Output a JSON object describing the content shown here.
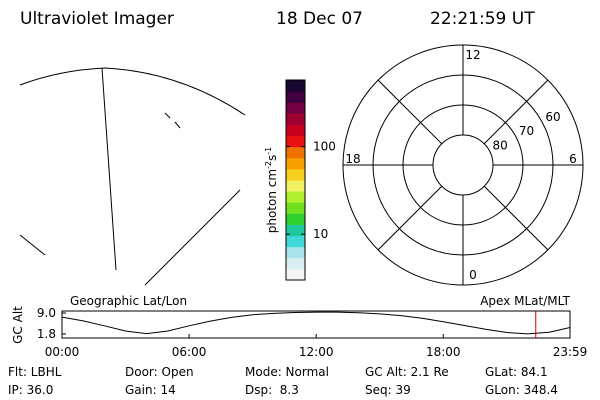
{
  "header": {
    "title": "Ultraviolet Imager",
    "date": "18 Dec 07",
    "time": "22:21:59 UT"
  },
  "colorbar": {
    "label": "photon cm",
    "label_exp1": "-2",
    "label_unit2": "s",
    "label_exp2": "-1",
    "log": true,
    "lim": [
      3,
      575
    ],
    "ticks": [
      10,
      100
    ],
    "colors": [
      "#f4f4f4",
      "#d8eef0",
      "#a8e4ea",
      "#40d8d8",
      "#20c8a0",
      "#30d030",
      "#70e020",
      "#b0f030",
      "#f0f060",
      "#f8d020",
      "#f8a000",
      "#f07000",
      "#e81010",
      "#c80020",
      "#a00030",
      "#700040",
      "#400040",
      "#180830"
    ]
  },
  "polar": {
    "lat_lim": [
      90,
      50
    ],
    "rings": [
      80,
      70,
      60
    ],
    "mlt_ticks": [
      12,
      18,
      6,
      0
    ],
    "spoke_step": 3
  },
  "timeline": {
    "left_title": "Geographic Lat/Lon",
    "right_title": "Apex MLat/MLT",
    "ylabel": "GC Alt",
    "ylim": [
      0.4,
      9.7
    ],
    "yticks": [
      {
        "value": 9,
        "label": "9.0"
      },
      {
        "value": 1.8,
        "label": "1.8"
      }
    ],
    "xlim": [
      0,
      1439
    ],
    "xticks": [
      {
        "value": 0,
        "label": "00:00"
      },
      {
        "value": 360,
        "label": "06:00"
      },
      {
        "value": 720,
        "label": "12:00"
      },
      {
        "value": 1080,
        "label": "18:00"
      },
      {
        "value": 1439,
        "label": "23:59"
      }
    ],
    "x": [
      0,
      60,
      120,
      180,
      240,
      300,
      360,
      420,
      480,
      540,
      600,
      660,
      720,
      780,
      840,
      900,
      960,
      1020,
      1080,
      1140,
      1200,
      1260,
      1320,
      1380,
      1439
    ],
    "values": [
      7.6,
      6.3,
      4.6,
      2.8,
      1.9,
      2.8,
      4.6,
      6.2,
      7.5,
      8.4,
      8.9,
      9.2,
      9.3,
      9.3,
      9.1,
      8.7,
      8.1,
      7.2,
      6.0,
      4.7,
      3.4,
      2.3,
      1.8,
      2.4,
      4.0
    ],
    "marker": 1342,
    "marker_color": "#cc0000"
  },
  "status": [
    [
      "Flt: LBHL",
      "Door: Open",
      "Mode: Normal",
      "GC Alt: 2.1 Re",
      "GLat: 84.1"
    ],
    [
      "IP: 36.0",
      "Gain: 14",
      "Dsp:  8.3",
      "Seq: 39",
      "GLon: 348.4"
    ]
  ]
}
